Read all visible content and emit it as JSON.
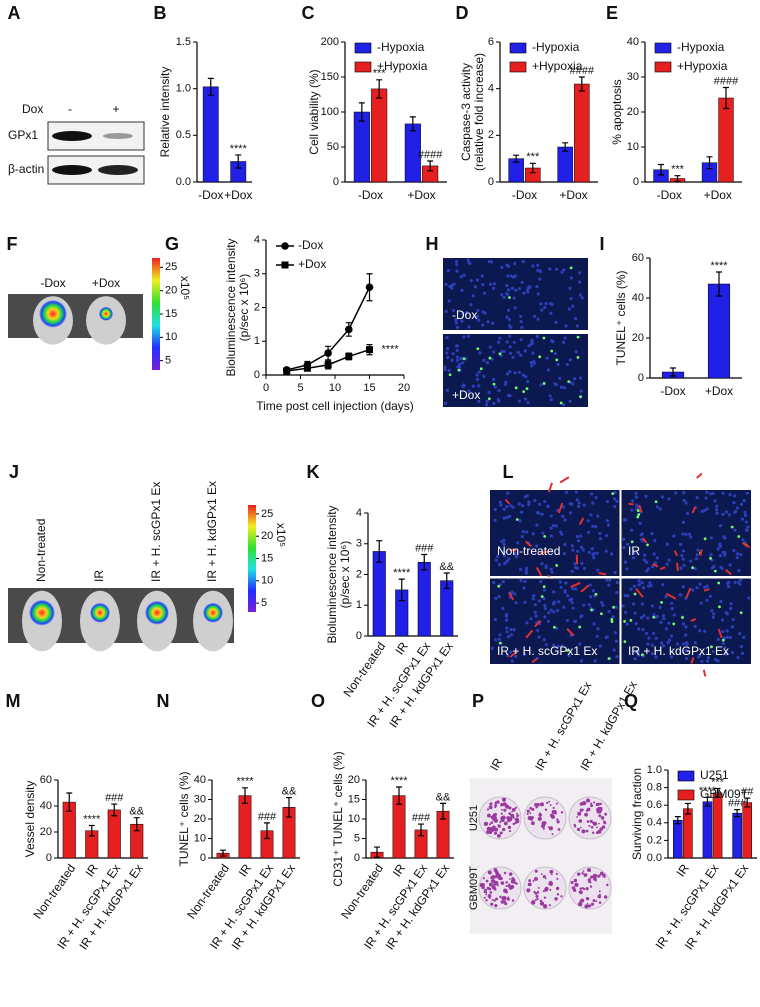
{
  "chart_data": [
    {
      "panel": "B",
      "type": "bar",
      "ylabel": "Relative intensity",
      "categories": [
        "-Dox",
        "+Dox"
      ],
      "series": [
        {
          "color": "#2020e6",
          "values": [
            1.02,
            0.22
          ],
          "errors": [
            0.09,
            0.07
          ],
          "annotations": [
            null,
            "****"
          ]
        }
      ],
      "ylim": [
        0,
        1.5
      ],
      "yticks": [
        {
          "value": 0,
          "label": "0.0"
        },
        0.5,
        {
          "value": 1,
          "label": "1.0"
        },
        1.5
      ]
    },
    {
      "panel": "C",
      "type": "bar",
      "ylabel": "Cell viability (%)",
      "categories": [
        "-Dox",
        "+Dox"
      ],
      "legend": "upper left",
      "series": [
        {
          "name": "-Hypoxia",
          "color": "#2020e6",
          "values": [
            100,
            83
          ],
          "errors": [
            13,
            10
          ]
        },
        {
          "name": "+Hypoxia",
          "color": "#e62020",
          "values": [
            133,
            23
          ],
          "errors": [
            13,
            7
          ],
          "annotations": [
            "***",
            "####"
          ]
        }
      ],
      "ylim": [
        0,
        200
      ],
      "yticks": [
        0,
        50,
        100,
        150,
        200
      ]
    },
    {
      "panel": "D",
      "type": "bar",
      "ylabel": [
        "Caspase-3 activity",
        "(relative fold increase)"
      ],
      "categories": [
        "-Dox",
        "+Dox"
      ],
      "legend": "upper left",
      "series": [
        {
          "name": "-Hypoxia",
          "color": "#2020e6",
          "values": [
            1.0,
            1.5
          ],
          "errors": [
            0.15,
            0.18
          ]
        },
        {
          "name": "+Hypoxia",
          "color": "#e62020",
          "values": [
            0.6,
            4.2
          ],
          "errors": [
            0.2,
            0.3
          ],
          "annotations": [
            "***",
            "####"
          ]
        }
      ],
      "ylim": [
        0,
        6
      ],
      "yticks": [
        0,
        2,
        4,
        6
      ]
    },
    {
      "panel": "E",
      "type": "bar",
      "ylabel": "% apoptosis",
      "categories": [
        "-Dox",
        "+Dox"
      ],
      "legend": "upper left",
      "series": [
        {
          "name": "-Hypoxia",
          "color": "#2020e6",
          "values": [
            3.5,
            5.5
          ],
          "errors": [
            1.5,
            1.7
          ]
        },
        {
          "name": "+Hypoxia",
          "color": "#e62020",
          "values": [
            1.0,
            24
          ],
          "errors": [
            0.8,
            3
          ],
          "annotations": [
            "***",
            "####"
          ]
        }
      ],
      "ylim": [
        0,
        40
      ],
      "yticks": [
        0,
        10,
        20,
        30,
        40
      ]
    },
    {
      "panel": "G",
      "type": "line",
      "ylabel": [
        "Bioluminescence intensity",
        "(p/sec x 10⁶)"
      ],
      "xlabel": "Time post cell injection (days)",
      "x": [
        3,
        6,
        9,
        12,
        15
      ],
      "legend": "upper left",
      "annotation": "****",
      "series": [
        {
          "name": "-Dox",
          "color": "#000000",
          "marker": "circle",
          "values": [
            0.15,
            0.3,
            0.65,
            1.35,
            2.6
          ],
          "errors": [
            0.05,
            0.1,
            0.2,
            0.2,
            0.4
          ]
        },
        {
          "name": "+Dox",
          "color": "#000000",
          "marker": "square",
          "values": [
            0.12,
            0.2,
            0.3,
            0.55,
            0.75
          ],
          "errors": [
            0.05,
            0.08,
            0.12,
            0.1,
            0.15
          ]
        }
      ],
      "xlim": [
        0,
        20
      ],
      "xticks": [
        0,
        5,
        10,
        15,
        20
      ],
      "ylim": [
        0,
        4
      ],
      "yticks": [
        0,
        1,
        2,
        3,
        4
      ]
    },
    {
      "panel": "I",
      "type": "bar",
      "ylabel": "TUNEL⁺ cells (%)",
      "categories": [
        "-Dox",
        "+Dox"
      ],
      "series": [
        {
          "color": "#2020e6",
          "values": [
            3,
            47
          ],
          "errors": [
            2,
            6
          ],
          "annotations": [
            null,
            "****"
          ]
        }
      ],
      "ylim": [
        0,
        60
      ],
      "yticks": [
        0,
        20,
        40,
        60
      ]
    },
    {
      "panel": "K",
      "type": "bar",
      "ylabel": [
        "Bioluminescence intensity",
        "(p/sec x 10⁶)"
      ],
      "categories": [
        "Non-treated",
        "IR",
        "IR + H. scGPx1 Ex",
        "IR + H. kdGPx1 Ex"
      ],
      "series": [
        {
          "color": "#2020e6",
          "values": [
            2.75,
            1.5,
            2.4,
            1.8
          ],
          "errors": [
            0.35,
            0.35,
            0.25,
            0.25
          ],
          "annotations": [
            null,
            "****",
            "###",
            "&&"
          ]
        }
      ],
      "ylim": [
        0,
        4
      ],
      "yticks": [
        0,
        1,
        2,
        3,
        4
      ]
    },
    {
      "panel": "M",
      "type": "bar",
      "ylabel": "Vessel density",
      "categories": [
        "Non-treated",
        "IR",
        "IR + H. scGPx1 Ex",
        "IR + H. kdGPx1 Ex"
      ],
      "series": [
        {
          "color": "#e62020",
          "values": [
            43,
            21,
            37,
            26
          ],
          "errors": [
            7,
            4,
            4.5,
            5
          ],
          "annotations": [
            null,
            "****",
            "###",
            "&&"
          ]
        }
      ],
      "ylim": [
        0,
        60
      ],
      "yticks": [
        0,
        20,
        40,
        60
      ]
    },
    {
      "panel": "N",
      "type": "bar",
      "ylabel": "TUNEL⁺ cells (%)",
      "categories": [
        "Non-treated",
        "IR",
        "IR + H. scGPx1 Ex",
        "IR + H. kdGPx1 Ex"
      ],
      "series": [
        {
          "color": "#e62020",
          "values": [
            2.5,
            32,
            14,
            26
          ],
          "errors": [
            1.5,
            4,
            4,
            5
          ],
          "annotations": [
            null,
            "****",
            "###",
            "&&"
          ]
        }
      ],
      "ylim": [
        0,
        40
      ],
      "yticks": [
        0,
        10,
        20,
        30,
        40
      ]
    },
    {
      "panel": "O",
      "type": "bar",
      "ylabel": "CD31⁺ TUNEL⁺ cells (%)",
      "categories": [
        "Non-treated",
        "IR",
        "IR + H. scGPx1 Ex",
        "IR + H. kdGPx1 Ex"
      ],
      "series": [
        {
          "color": "#e62020",
          "values": [
            1.5,
            16,
            7.2,
            12
          ],
          "errors": [
            1.3,
            2.2,
            1.5,
            2
          ],
          "annotations": [
            null,
            "****",
            "###",
            "&&"
          ]
        }
      ],
      "ylim": [
        0,
        20
      ],
      "yticks": [
        0,
        5,
        10,
        15,
        20
      ]
    },
    {
      "panel": "Q",
      "type": "bar",
      "ylabel": "Surviving fraction",
      "legend": "upper left",
      "categories": [
        "IR",
        "IR + H. scGPx1 Ex",
        "IR + H. kdGPx1 Ex"
      ],
      "series": [
        {
          "name": "U251",
          "color": "#2020e6",
          "values": [
            0.43,
            0.64,
            0.51
          ],
          "errors": [
            0.04,
            0.05,
            0.04
          ],
          "annotations": [
            null,
            "****",
            "###"
          ]
        },
        {
          "name": "GBM09T",
          "color": "#e62020",
          "values": [
            0.56,
            0.74,
            0.63
          ],
          "errors": [
            0.06,
            0.05,
            0.05
          ],
          "annotations": [
            null,
            "***",
            "##"
          ]
        }
      ],
      "ylim": [
        0,
        1
      ],
      "yticks": [
        {
          "value": 0,
          "label": "0.0"
        },
        0.2,
        0.4,
        0.6,
        0.8,
        {
          "value": 1,
          "label": "1.0"
        }
      ]
    }
  ],
  "images": {
    "blot": {
      "panel": "A",
      "treatment": "Dox",
      "lanes": [
        "-",
        "+"
      ],
      "rows": [
        "GPx1",
        "β-actin"
      ]
    },
    "imaging_dox": {
      "panel": "F",
      "labels": [
        "-Dox",
        "+Dox"
      ],
      "colorbar_unit": "x10⁵",
      "colorbar_lim": [
        3,
        27
      ],
      "colorbar_ticks": [
        5,
        10,
        15,
        20,
        25
      ]
    },
    "tunel_dox": {
      "panel": "H",
      "labels": [
        "-Dox",
        "+Dox"
      ]
    },
    "imaging_ir": {
      "panel": "J",
      "labels": [
        "Non-treated",
        "IR",
        "IR + H. scGPx1 Ex",
        "IR + H. kdGPx1 Ex"
      ],
      "colorbar_unit": "x10⁵",
      "colorbar_lim": [
        3,
        27
      ],
      "colorbar_ticks": [
        5,
        10,
        15,
        20,
        25
      ]
    },
    "tunel_ir": {
      "panel": "L",
      "labels": [
        "Non-treated",
        "IR",
        "IR + H. scGPx1 Ex",
        "IR + H. kdGPx1 Ex"
      ]
    },
    "plates": {
      "panel": "P",
      "columns": [
        "IR",
        "IR + H. scGPx1 Ex",
        "IR + H. kdGPx1 Ex"
      ],
      "rows": [
        "U251",
        "GBM09T"
      ]
    }
  }
}
